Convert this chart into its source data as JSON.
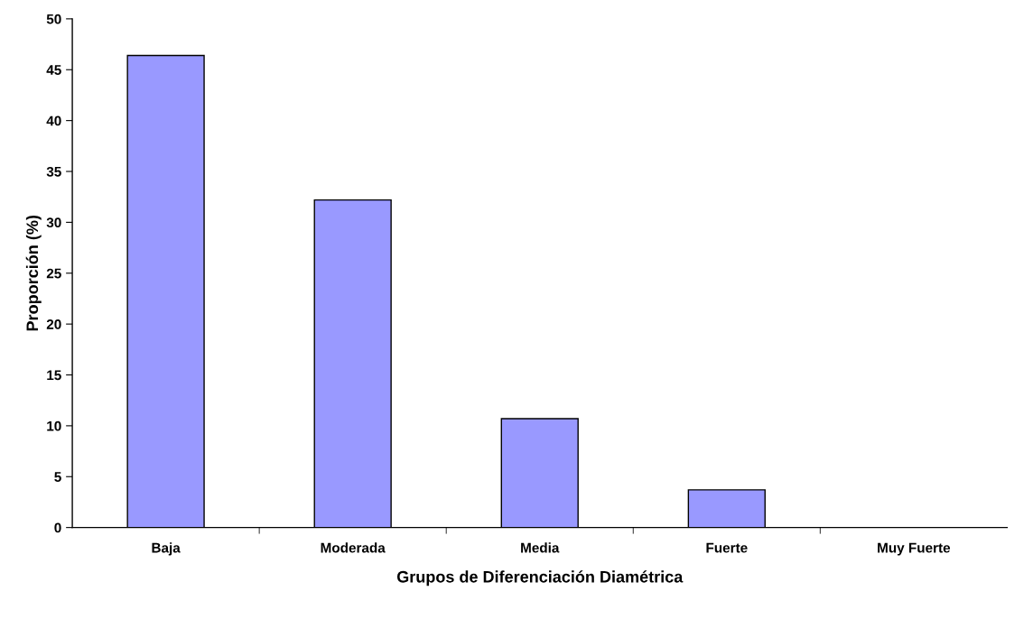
{
  "chart_data": {
    "type": "bar",
    "xlabel": "Grupos de Diferenciación Diamétrica",
    "ylabel": "Proporción (%)",
    "categories": [
      "Baja",
      "Moderada",
      "Media",
      "Fuerte",
      "Muy Fuerte"
    ],
    "values": [
      46.4,
      32.2,
      10.7,
      3.7,
      0
    ],
    "color": "#9999ff",
    "ylim": [
      0,
      50
    ],
    "yticks": [
      0,
      5,
      10,
      15,
      20,
      25,
      30,
      35,
      40,
      45,
      50
    ],
    "grid": false
  }
}
